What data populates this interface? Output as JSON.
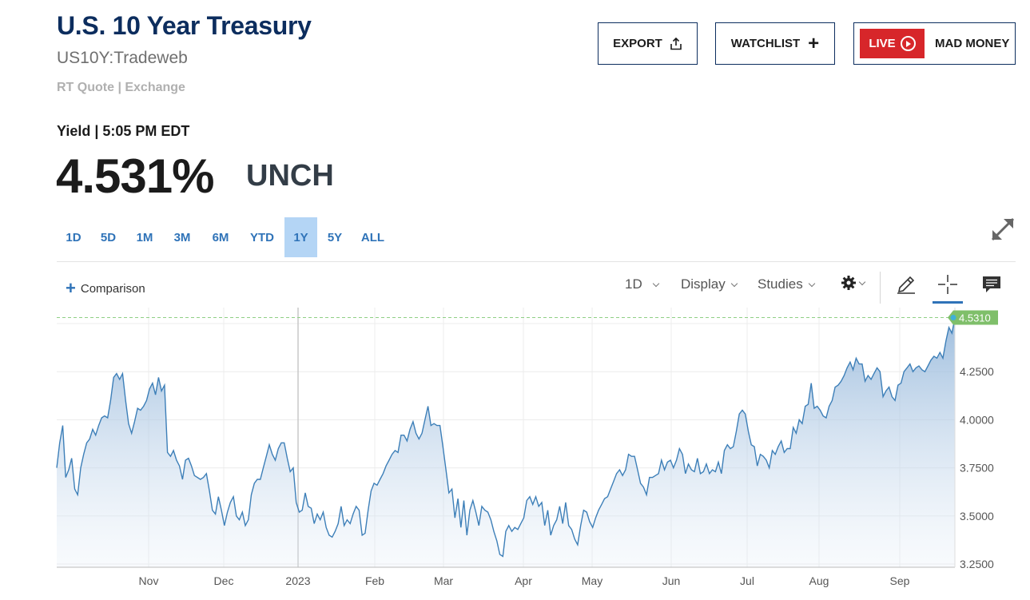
{
  "header": {
    "title": "U.S. 10 Year Treasury",
    "symbol": "US10Y:Tradeweb",
    "quote_source": "RT Quote | Exchange"
  },
  "buttons": {
    "export": "EXPORT",
    "watchlist": "WATCHLIST",
    "live": "LIVE",
    "mad_money": "MAD MONEY"
  },
  "quote": {
    "yield_label": "Yield | 5:05 PM EDT",
    "value": "4.531%",
    "change": "UNCH"
  },
  "ranges": [
    {
      "label": "1D",
      "active": false
    },
    {
      "label": "5D",
      "active": false
    },
    {
      "label": "1M",
      "active": false
    },
    {
      "label": "3M",
      "active": false
    },
    {
      "label": "6M",
      "active": false
    },
    {
      "label": "YTD",
      "active": false
    },
    {
      "label": "1Y",
      "active": true
    },
    {
      "label": "5Y",
      "active": false
    },
    {
      "label": "ALL",
      "active": false
    }
  ],
  "toolbar": {
    "comparison": "Comparison",
    "interval": "1D",
    "display": "Display",
    "studies": "Studies"
  },
  "colors": {
    "line": "#3d7fb8",
    "last_price_badge": "#7fbf6a",
    "live_red": "#d7262a",
    "title_navy": "#0c2d5e",
    "active_range": "#b4d5f5"
  },
  "chart_data": {
    "type": "area",
    "series": [
      {
        "values": [
          3.75,
          3.88,
          3.97,
          3.7,
          3.74,
          3.8,
          3.64,
          3.61,
          3.75,
          3.82,
          3.88,
          3.9,
          3.95,
          3.92,
          3.97,
          4.01,
          4.02,
          4.01,
          4.1,
          4.22,
          4.24,
          4.21,
          4.24,
          4.1,
          3.98,
          3.93,
          3.99,
          4.06,
          4.05,
          4.07,
          4.1,
          4.16,
          4.19,
          4.13,
          4.22,
          4.15,
          4.18,
          3.83,
          3.81,
          3.84,
          3.79,
          3.76,
          3.69,
          3.79,
          3.8,
          3.76,
          3.71,
          3.7,
          3.69,
          3.7,
          3.72,
          3.63,
          3.53,
          3.51,
          3.6,
          3.53,
          3.45,
          3.52,
          3.57,
          3.6,
          3.5,
          3.48,
          3.52,
          3.45,
          3.48,
          3.61,
          3.67,
          3.69,
          3.69,
          3.75,
          3.81,
          3.87,
          3.82,
          3.79,
          3.85,
          3.88,
          3.88,
          3.8,
          3.73,
          3.75,
          3.57,
          3.52,
          3.53,
          3.62,
          3.55,
          3.54,
          3.46,
          3.51,
          3.48,
          3.52,
          3.44,
          3.4,
          3.39,
          3.42,
          3.46,
          3.55,
          3.45,
          3.48,
          3.46,
          3.51,
          3.55,
          3.53,
          3.4,
          3.41,
          3.53,
          3.63,
          3.67,
          3.66,
          3.69,
          3.72,
          3.76,
          3.79,
          3.82,
          3.84,
          3.83,
          3.92,
          3.92,
          3.89,
          3.95,
          3.99,
          3.93,
          3.9,
          3.93,
          4.0,
          4.07,
          3.97,
          3.98,
          3.97,
          3.97,
          3.86,
          3.74,
          3.62,
          3.64,
          3.49,
          3.59,
          3.44,
          3.58,
          3.4,
          3.53,
          3.58,
          3.52,
          3.45,
          3.55,
          3.53,
          3.52,
          3.48,
          3.42,
          3.37,
          3.3,
          3.29,
          3.42,
          3.45,
          3.42,
          3.44,
          3.43,
          3.46,
          3.49,
          3.58,
          3.6,
          3.56,
          3.6,
          3.55,
          3.57,
          3.45,
          3.53,
          3.4,
          3.45,
          3.48,
          3.55,
          3.46,
          3.57,
          3.45,
          3.43,
          3.38,
          3.35,
          3.45,
          3.53,
          3.52,
          3.47,
          3.44,
          3.49,
          3.53,
          3.56,
          3.59,
          3.6,
          3.64,
          3.68,
          3.72,
          3.74,
          3.71,
          3.74,
          3.82,
          3.81,
          3.81,
          3.74,
          3.67,
          3.65,
          3.61,
          3.7,
          3.7,
          3.71,
          3.72,
          3.79,
          3.74,
          3.78,
          3.79,
          3.75,
          3.79,
          3.85,
          3.82,
          3.72,
          3.77,
          3.74,
          3.73,
          3.8,
          3.72,
          3.73,
          3.77,
          3.72,
          3.74,
          3.73,
          3.78,
          3.72,
          3.84,
          3.87,
          3.85,
          3.86,
          3.94,
          4.03,
          4.05,
          4.03,
          3.94,
          3.87,
          3.86,
          3.76,
          3.82,
          3.81,
          3.79,
          3.75,
          3.84,
          3.82,
          3.86,
          3.89,
          3.83,
          3.85,
          3.85,
          3.96,
          3.93,
          4.0,
          3.98,
          4.07,
          4.08,
          4.19,
          4.06,
          4.07,
          4.05,
          4.02,
          4.01,
          4.07,
          4.1,
          4.17,
          4.18,
          4.2,
          4.23,
          4.27,
          4.3,
          4.26,
          4.32,
          4.29,
          4.29,
          4.2,
          4.23,
          4.21,
          4.24,
          4.27,
          4.25,
          4.12,
          4.15,
          4.17,
          4.12,
          4.1,
          4.18,
          4.19,
          4.25,
          4.27,
          4.29,
          4.25,
          4.27,
          4.28,
          4.26,
          4.25,
          4.28,
          4.31,
          4.33,
          4.32,
          4.35,
          4.32,
          4.41,
          4.48,
          4.45,
          4.53
        ]
      }
    ],
    "x_axis_labels": [
      "Nov",
      "Dec",
      "2023",
      "Feb",
      "Mar",
      "Apr",
      "May",
      "Jun",
      "Jul",
      "Aug",
      "Sep"
    ],
    "y_ticks": [
      "3.2500",
      "3.5000",
      "3.7500",
      "4.0000",
      "4.2500"
    ],
    "ylim": [
      3.25,
      4.55
    ],
    "last_value_label": "4.5310",
    "last_value": 4.531,
    "grid": true
  }
}
